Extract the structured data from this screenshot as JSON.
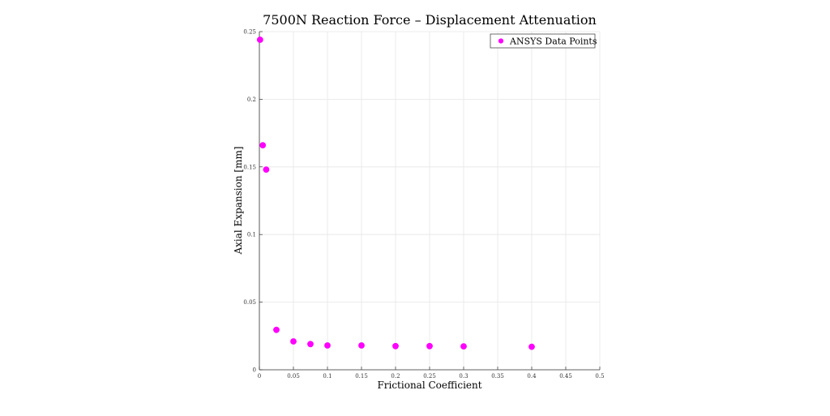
{
  "chart_data": {
    "type": "scatter",
    "title": "7500N Reaction Force – Displacement Attenuation",
    "xlabel": "Frictional Coefficient",
    "ylabel": "Axial Expansion [mm]",
    "xlim": [
      0,
      0.5
    ],
    "ylim": [
      0,
      0.25
    ],
    "xticks": [
      0,
      0.05,
      0.1,
      0.15,
      0.2,
      0.25,
      0.3,
      0.35,
      0.4,
      0.45,
      0.5
    ],
    "xtick_labels": [
      "0",
      "0.05",
      "0.1",
      "0.15",
      "0.2",
      "0.25",
      "0.3",
      "0.35",
      "0.4",
      "0.45",
      "0.5"
    ],
    "yticks": [
      0,
      0.05,
      0.1,
      0.15,
      0.2,
      0.25
    ],
    "ytick_labels": [
      "0",
      "0.05",
      "0.1",
      "0.15",
      "0.2",
      "0.25"
    ],
    "grid": true,
    "legend_position": "top-right",
    "series": [
      {
        "name": "ANSYS Data Points",
        "color": "#ff00ff",
        "marker": "circle",
        "x": [
          0.001,
          0.005,
          0.01,
          0.025,
          0.05,
          0.075,
          0.1,
          0.15,
          0.2,
          0.25,
          0.3,
          0.4
        ],
        "y": [
          0.244,
          0.166,
          0.148,
          0.0295,
          0.021,
          0.019,
          0.018,
          0.018,
          0.0175,
          0.0175,
          0.0173,
          0.017
        ]
      }
    ]
  }
}
